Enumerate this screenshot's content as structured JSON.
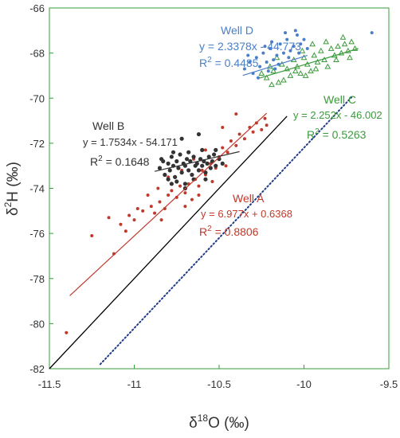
{
  "chart_data": {
    "type": "scatter",
    "xlabel": "δ18O (‰)",
    "ylabel": "δ2H (‰)",
    "xlim": [
      -11.5,
      -9.5
    ],
    "ylim": [
      -82,
      -66
    ],
    "xticks": [
      -11.5,
      -11,
      -10.5,
      -10,
      -9.5
    ],
    "yticks": [
      -82,
      -80,
      -78,
      -76,
      -74,
      -72,
      -70,
      -68,
      -66
    ],
    "xtick_labels": [
      "-11.5",
      "-11",
      "-10.5",
      "-10",
      "-9.5"
    ],
    "ytick_labels": [
      "-82",
      "-80",
      "-78",
      "-76",
      "-74",
      "-72",
      "-70",
      "-68",
      "-66"
    ],
    "grid": false,
    "colors": {
      "well_a": "#c0392b",
      "well_b": "#333333",
      "well_c": "#3a9b3a",
      "well_d": "#4a7fc8",
      "gmwl": "#000000",
      "lmwl": "#1f3c88",
      "frame": "#3a9b3a"
    },
    "reference_lines": [
      {
        "id": "gmwl",
        "style": "solid",
        "slope": 8,
        "intercept": 10,
        "x_range": [
          -11.5,
          -10.1
        ]
      },
      {
        "id": "lmwl",
        "style": "dotted",
        "slope": 8,
        "intercept": 7.8,
        "x_range": [
          -11.2,
          -9.72
        ]
      }
    ],
    "series": [
      {
        "name": "Well A",
        "marker": "dot",
        "regression": {
          "equation": "y = 6.977x + 0.6368",
          "r2_label": "R",
          "r2_sup": "2",
          "r2_value": " = 0.8806",
          "slope": 6.977,
          "intercept": 0.6368,
          "x_range": [
            -11.38,
            -10.22
          ]
        },
        "points": [
          [
            -11.4,
            -80.4
          ],
          [
            -11.25,
            -76.1
          ],
          [
            -11.12,
            -76.9
          ],
          [
            -11.05,
            -75.9
          ],
          [
            -11.0,
            -75.4
          ],
          [
            -10.95,
            -75.0
          ],
          [
            -10.9,
            -74.8
          ],
          [
            -10.88,
            -75.1
          ],
          [
            -10.85,
            -74.6
          ],
          [
            -10.82,
            -74.9
          ],
          [
            -10.8,
            -74.3
          ],
          [
            -10.78,
            -74.1
          ],
          [
            -10.75,
            -74.4
          ],
          [
            -10.73,
            -73.9
          ],
          [
            -10.7,
            -74.2
          ],
          [
            -10.68,
            -73.8
          ],
          [
            -10.66,
            -74.5
          ],
          [
            -10.64,
            -73.6
          ],
          [
            -10.62,
            -73.9
          ],
          [
            -10.6,
            -73.2
          ],
          [
            -10.58,
            -73.4
          ],
          [
            -10.55,
            -72.9
          ],
          [
            -10.52,
            -73.1
          ],
          [
            -10.5,
            -72.6
          ],
          [
            -10.48,
            -72.2
          ],
          [
            -10.45,
            -72.4
          ],
          [
            -10.43,
            -71.9
          ],
          [
            -10.4,
            -72.1
          ],
          [
            -10.38,
            -71.6
          ],
          [
            -10.35,
            -71.8
          ],
          [
            -10.32,
            -71.3
          ],
          [
            -10.3,
            -71.5
          ],
          [
            -10.28,
            -71.1
          ],
          [
            -10.25,
            -71.4
          ],
          [
            -10.23,
            -70.9
          ],
          [
            -10.22,
            -71.2
          ],
          [
            -10.4,
            -70.7
          ],
          [
            -10.48,
            -71.3
          ],
          [
            -10.58,
            -72.3
          ],
          [
            -10.65,
            -72.7
          ],
          [
            -10.72,
            -73.2
          ],
          [
            -10.8,
            -73.5
          ],
          [
            -10.86,
            -74.0
          ],
          [
            -10.92,
            -74.3
          ],
          [
            -10.98,
            -74.9
          ],
          [
            -11.03,
            -75.2
          ],
          [
            -11.08,
            -75.6
          ],
          [
            -11.15,
            -75.3
          ],
          [
            -10.84,
            -75.4
          ],
          [
            -10.7,
            -74.8
          ],
          [
            -10.62,
            -74.3
          ],
          [
            -10.54,
            -73.7
          ],
          [
            -10.46,
            -73.0
          ]
        ]
      },
      {
        "name": "Well B",
        "marker": "dot",
        "regression": {
          "equation": "y = 1.7534x - 54.171",
          "r2_label": "R",
          "r2_sup": "2",
          "r2_value": " = 0.1648",
          "slope": 1.7534,
          "intercept": -54.171,
          "x_range": [
            -10.88,
            -10.38
          ]
        },
        "points": [
          [
            -10.85,
            -73.1
          ],
          [
            -10.83,
            -72.8
          ],
          [
            -10.82,
            -73.4
          ],
          [
            -10.8,
            -72.9
          ],
          [
            -10.79,
            -73.2
          ],
          [
            -10.78,
            -72.6
          ],
          [
            -10.77,
            -73.0
          ],
          [
            -10.76,
            -73.5
          ],
          [
            -10.75,
            -72.8
          ],
          [
            -10.74,
            -73.1
          ],
          [
            -10.73,
            -72.5
          ],
          [
            -10.72,
            -73.3
          ],
          [
            -10.71,
            -72.9
          ],
          [
            -10.7,
            -73.0
          ],
          [
            -10.69,
            -72.7
          ],
          [
            -10.68,
            -73.2
          ],
          [
            -10.67,
            -72.8
          ],
          [
            -10.66,
            -73.4
          ],
          [
            -10.65,
            -72.6
          ],
          [
            -10.64,
            -73.0
          ],
          [
            -10.63,
            -72.9
          ],
          [
            -10.62,
            -73.2
          ],
          [
            -10.61,
            -72.7
          ],
          [
            -10.6,
            -73.0
          ],
          [
            -10.59,
            -72.8
          ],
          [
            -10.58,
            -73.3
          ],
          [
            -10.57,
            -72.9
          ],
          [
            -10.56,
            -72.6
          ],
          [
            -10.55,
            -73.1
          ],
          [
            -10.54,
            -72.8
          ],
          [
            -10.53,
            -72.5
          ],
          [
            -10.52,
            -73.0
          ],
          [
            -10.5,
            -72.7
          ],
          [
            -10.48,
            -72.9
          ],
          [
            -10.72,
            -71.8
          ],
          [
            -10.7,
            -74.0
          ],
          [
            -10.75,
            -73.7
          ],
          [
            -10.65,
            -73.6
          ],
          [
            -10.8,
            -73.6
          ],
          [
            -10.6,
            -72.3
          ],
          [
            -10.68,
            -72.4
          ],
          [
            -10.77,
            -72.4
          ],
          [
            -10.84,
            -72.7
          ],
          [
            -10.58,
            -73.6
          ],
          [
            -10.52,
            -72.3
          ],
          [
            -10.62,
            -71.6
          ],
          [
            -10.7,
            -73.8
          ],
          [
            -10.78,
            -73.8
          ]
        ]
      },
      {
        "name": "Well C",
        "marker": "triangle",
        "regression": {
          "equation": "y = 2.252x - 46.002",
          "r2_label": "R",
          "r2_sup": "2",
          "r2_value": " = 0.5263",
          "slope": 2.252,
          "intercept": -46.002,
          "x_range": [
            -10.26,
            -9.68
          ]
        },
        "points": [
          [
            -10.25,
            -68.9
          ],
          [
            -10.22,
            -69.1
          ],
          [
            -10.2,
            -68.6
          ],
          [
            -10.18,
            -68.8
          ],
          [
            -10.15,
            -69.3
          ],
          [
            -10.13,
            -68.5
          ],
          [
            -10.1,
            -68.7
          ],
          [
            -10.08,
            -69.0
          ],
          [
            -10.06,
            -68.3
          ],
          [
            -10.04,
            -68.6
          ],
          [
            -10.02,
            -68.9
          ],
          [
            -10.0,
            -68.2
          ],
          [
            -9.98,
            -68.5
          ],
          [
            -9.96,
            -68.8
          ],
          [
            -9.94,
            -68.1
          ],
          [
            -9.92,
            -68.4
          ],
          [
            -9.9,
            -67.9
          ],
          [
            -9.88,
            -68.3
          ],
          [
            -9.86,
            -68.6
          ],
          [
            -9.84,
            -67.8
          ],
          [
            -9.82,
            -68.1
          ],
          [
            -9.8,
            -67.7
          ],
          [
            -9.78,
            -68.0
          ],
          [
            -9.76,
            -67.6
          ],
          [
            -9.74,
            -67.9
          ],
          [
            -9.72,
            -67.5
          ],
          [
            -9.7,
            -67.8
          ],
          [
            -10.12,
            -69.2
          ],
          [
            -10.05,
            -68.8
          ],
          [
            -9.99,
            -69.0
          ],
          [
            -9.93,
            -68.7
          ],
          [
            -9.87,
            -67.5
          ],
          [
            -9.81,
            -68.3
          ],
          [
            -10.16,
            -68.2
          ],
          [
            -10.01,
            -67.9
          ],
          [
            -9.95,
            -67.6
          ],
          [
            -9.77,
            -67.3
          ],
          [
            -9.73,
            -68.2
          ],
          [
            -10.19,
            -69.4
          ]
        ]
      },
      {
        "name": "Well D",
        "marker": "dot",
        "regression": {
          "equation": "y = 2.3378x - 44.773",
          "r2_label": "R",
          "r2_sup": "2",
          "r2_value": " = 0.4485",
          "slope": 2.3378,
          "intercept": -44.773,
          "x_range": [
            -10.36,
            -9.98
          ]
        },
        "points": [
          [
            -10.35,
            -68.7
          ],
          [
            -10.32,
            -68.4
          ],
          [
            -10.3,
            -68.9
          ],
          [
            -10.28,
            -68.2
          ],
          [
            -10.26,
            -68.6
          ],
          [
            -10.24,
            -68.0
          ],
          [
            -10.22,
            -68.4
          ],
          [
            -10.2,
            -67.8
          ],
          [
            -10.18,
            -68.3
          ],
          [
            -10.16,
            -68.1
          ],
          [
            -10.14,
            -67.6
          ],
          [
            -10.12,
            -68.0
          ],
          [
            -10.1,
            -67.4
          ],
          [
            -10.08,
            -67.9
          ],
          [
            -10.06,
            -67.7
          ],
          [
            -10.04,
            -67.2
          ],
          [
            -10.02,
            -67.6
          ],
          [
            -10.0,
            -67.4
          ],
          [
            -10.27,
            -69.1
          ],
          [
            -10.21,
            -68.8
          ],
          [
            -10.15,
            -68.5
          ],
          [
            -10.09,
            -68.2
          ],
          [
            -10.03,
            -68.0
          ],
          [
            -10.19,
            -67.5
          ],
          [
            -10.11,
            -67.1
          ],
          [
            -10.05,
            -67.0
          ],
          [
            -10.23,
            -67.7
          ],
          [
            -9.98,
            -67.8
          ],
          [
            -9.6,
            -67.1
          ],
          [
            -10.17,
            -68.7
          ],
          [
            -10.33,
            -68.1
          ]
        ]
      }
    ],
    "annotations": {
      "well_d": {
        "title": "Well D",
        "equation": "y = 2.3378x - 44.773",
        "r2_label": "R",
        "r2_sup": "2",
        "r2_value": " = 0.4485"
      },
      "well_c": {
        "title": "Well C",
        "equation": "y = 2.252x - 46.002",
        "r2_label": "R",
        "r2_sup": "2",
        "r2_value": " = 0.5263"
      },
      "well_b": {
        "title": "Well B",
        "equation": "y = 1.7534x - 54.171",
        "r2_label": "R",
        "r2_sup": "2",
        "r2_value": " = 0.1648"
      },
      "well_a": {
        "title": "Well A",
        "equation": "y = 6.977x + 0.6368",
        "r2_label": "R",
        "r2_sup": "2",
        "r2_value": " = 0.8806"
      }
    },
    "axis_text": {
      "x_prefix": "δ",
      "x_sup": "18",
      "x_rest": "O (‰)",
      "y_prefix": "δ",
      "y_sup": "2",
      "y_rest": "H (‰)"
    }
  }
}
